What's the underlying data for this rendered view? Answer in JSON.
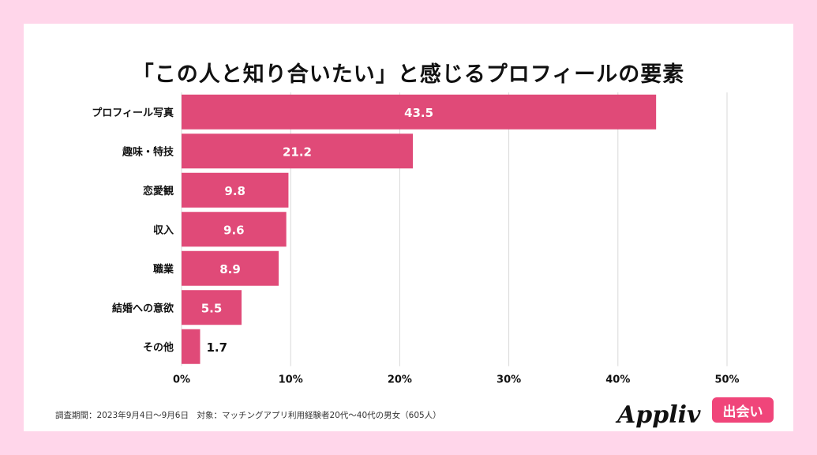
{
  "title": "「この人と知り合いたい」と感じるプロフィールの要素",
  "footnote": "調査期間：2023年9月4日〜9月6日　対象：マッチングアプリ利用経験者20代〜40代の男女（605人）",
  "logo": {
    "brand": "Appliv",
    "badge": "出会い"
  },
  "colors": {
    "bar": "#e04a78",
    "background": "#ffd6ea",
    "badge": "#f0457a"
  },
  "chart_data": {
    "type": "bar",
    "orientation": "horizontal",
    "title": "「この人と知り合いたい」と感じるプロフィールの要素",
    "categories": [
      "プロフィール写真",
      "趣味・特技",
      "恋愛観",
      "収入",
      "職業",
      "結婚への意欲",
      "その他"
    ],
    "values": [
      43.5,
      21.2,
      9.8,
      9.6,
      8.9,
      5.5,
      1.7
    ],
    "value_labels": [
      "43.5",
      "21.2",
      "9.8",
      "9.6",
      "8.9",
      "5.5",
      "1.7"
    ],
    "xlim": [
      0,
      50
    ],
    "x_ticks": [
      "0%",
      "10%",
      "20%",
      "30%",
      "40%",
      "50%"
    ],
    "grid": true
  }
}
